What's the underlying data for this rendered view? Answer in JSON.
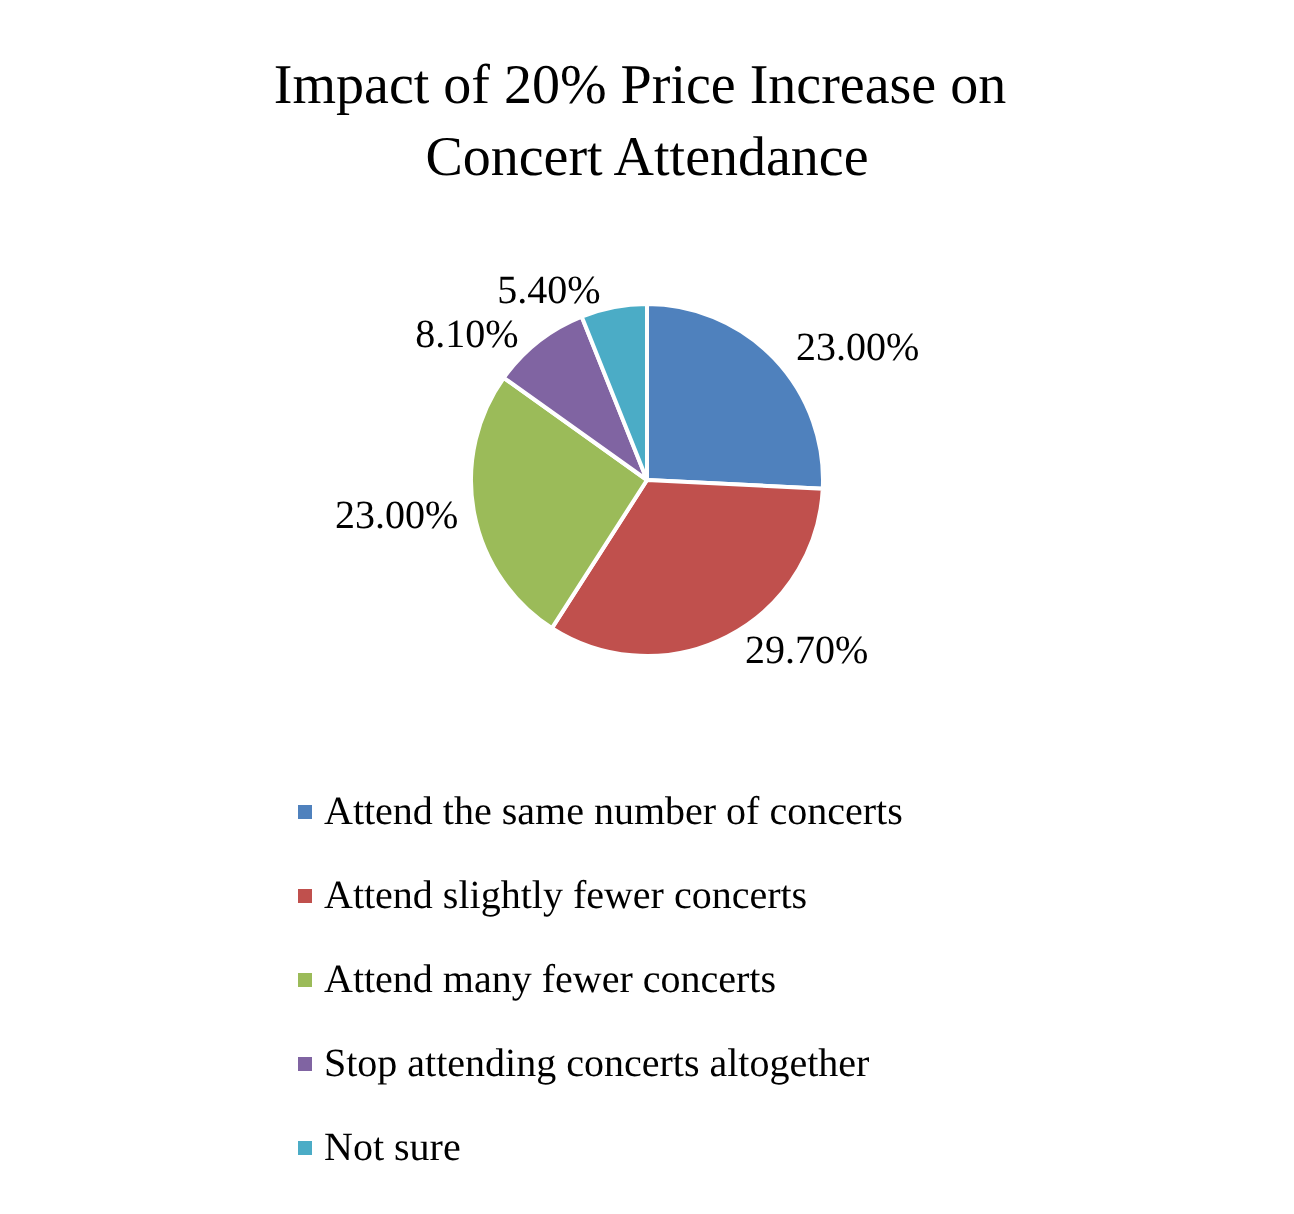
{
  "chart_data": {
    "type": "pie",
    "title": "Impact of 20% Price Increase on Concert Attendance",
    "categories": [
      "Attend the same number of concerts",
      "Attend slightly fewer concerts",
      "Attend many fewer concerts",
      "Stop attending concerts altogether",
      "Not sure"
    ],
    "values": [
      23.0,
      29.7,
      23.0,
      8.1,
      5.4
    ],
    "value_labels": [
      "23.00%",
      "29.70%",
      "23.00%",
      "8.10%",
      "5.40%"
    ],
    "colors": [
      "#4f81bd",
      "#c0504d",
      "#9bbb59",
      "#8064a2",
      "#4bacc6"
    ],
    "legend": "bottom"
  }
}
